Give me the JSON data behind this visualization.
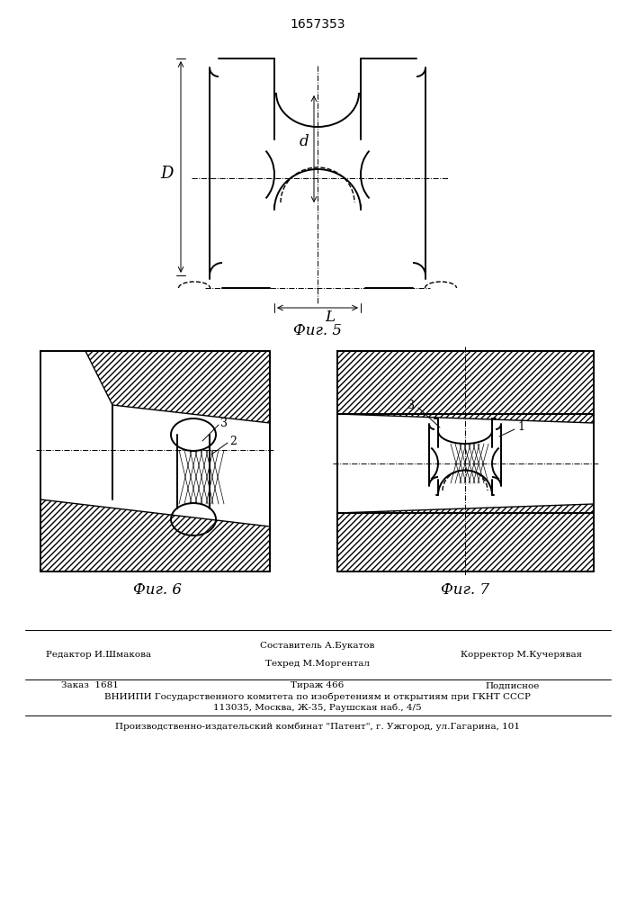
{
  "patent_number": "1657353",
  "fig5_caption": "Фиг. 5",
  "fig6_caption": "Фиг. 6",
  "fig7_caption": "Фиг. 7",
  "label_D": "D",
  "label_d": "d",
  "label_L": "L",
  "label_1": "1",
  "label_2": "2",
  "label_3": "3",
  "footer_col1_r1": "Редактор И.Шмакова",
  "footer_col2_r1a": "Составитель А.Букатов",
  "footer_col2_r1b": "Техред М.Моргентал",
  "footer_col3_r1": "Корректор М.Кучерявая",
  "footer_col1_r2": "Заказ  1681",
  "footer_col2_r2": "Тираж 466",
  "footer_col3_r2": "Подписное",
  "footer_r3": "ВНИИПИ Государственного комитета по изобретениям и открытиям при ГКНТ СССР",
  "footer_r4": "113035, Москва, Ж-35, Раушская наб., 4/5",
  "footer_r5": "Производственно-издательский комбинат \"Патент\", г. Ужгород, ул.Гагарина, 101",
  "bg_color": "#ffffff",
  "lc": "#000000"
}
